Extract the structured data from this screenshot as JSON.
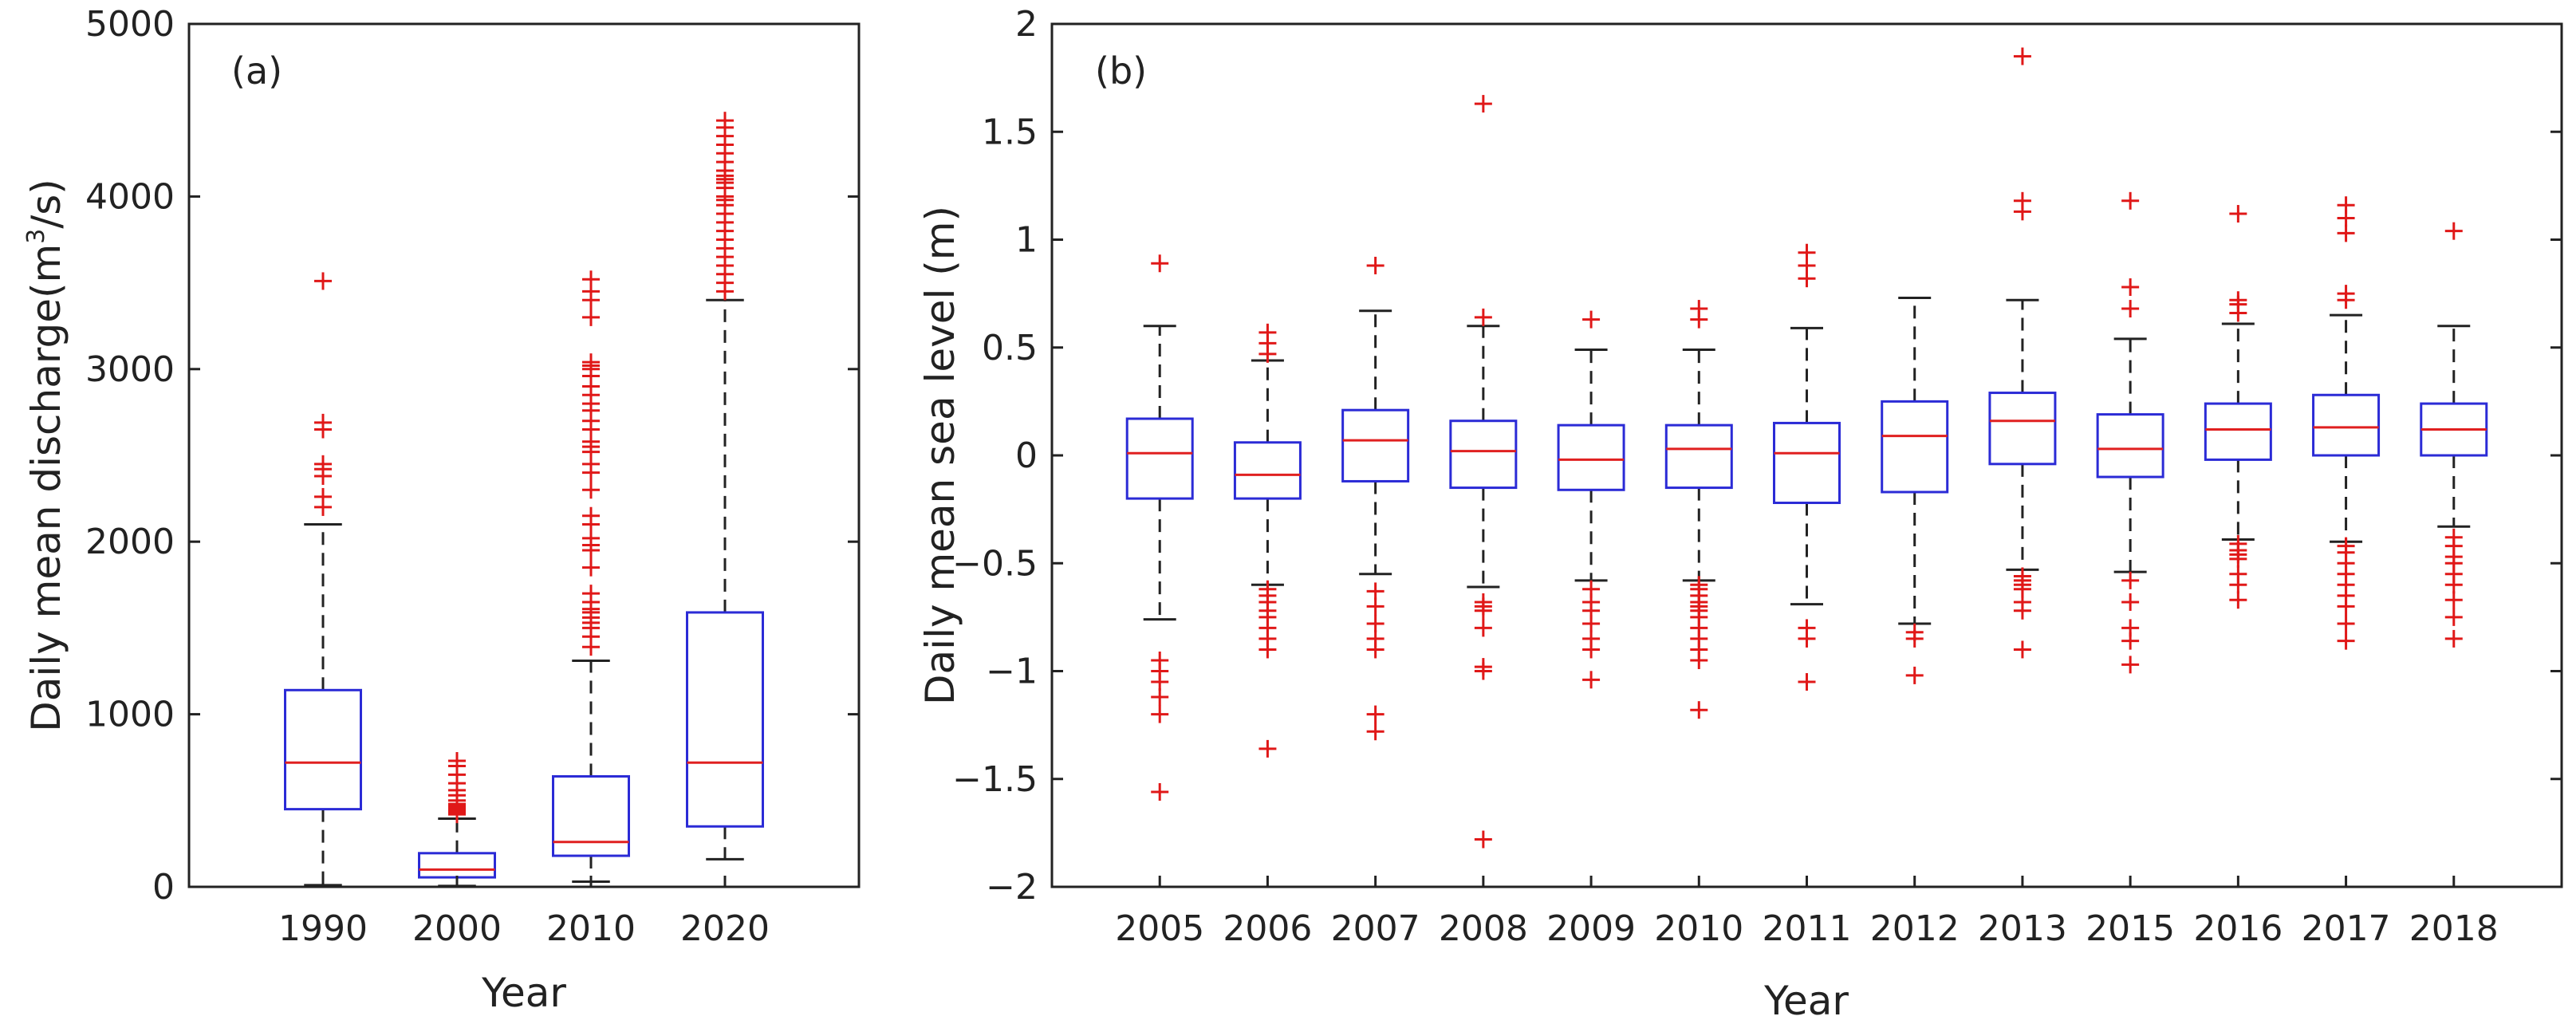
{
  "colors": {
    "box": "#2b2bd6",
    "median": "#e02020",
    "outlier": "#e01818",
    "whisker": "#222222",
    "axis": "#222222"
  },
  "chart_data": [
    {
      "type": "boxplot",
      "panel_label": "(a)",
      "xlabel": "Year",
      "ylabel_main": "Daily mean discharge(m",
      "ylabel_sup": "3",
      "ylabel_tail": "/s)",
      "ylim": [
        0,
        5000
      ],
      "yticks": [
        0,
        1000,
        2000,
        3000,
        4000,
        5000
      ],
      "yticklabels": [
        "0",
        "1000",
        "2000",
        "3000",
        "4000",
        "5000"
      ],
      "categories": [
        "1990",
        "2000",
        "2010",
        "2020"
      ],
      "boxes": [
        {
          "whislo": 10,
          "q1": 450,
          "med": 720,
          "q3": 1140,
          "whishi": 2100,
          "fliers": [
            2200,
            2260,
            2380,
            2420,
            2450,
            2650,
            2690,
            3510
          ]
        },
        {
          "whislo": 5,
          "q1": 55,
          "med": 100,
          "q3": 195,
          "whishi": 395,
          "fliers": [
            420,
            430,
            440,
            450,
            455,
            460,
            470,
            480,
            500,
            530,
            560,
            600,
            650,
            700,
            730
          ]
        },
        {
          "whislo": 30,
          "q1": 180,
          "med": 260,
          "q3": 640,
          "whishi": 1310,
          "fliers": [
            1390,
            1450,
            1500,
            1530,
            1560,
            1590,
            1610,
            1650,
            1700,
            1850,
            1950,
            1980,
            2020,
            2100,
            2150,
            2300,
            2400,
            2450,
            2520,
            2550,
            2580,
            2650,
            2700,
            2760,
            2800,
            2850,
            2900,
            2960,
            3000,
            3020,
            3040,
            3300,
            3400,
            3450,
            3520
          ]
        },
        {
          "whislo": 160,
          "q1": 350,
          "med": 720,
          "q3": 1590,
          "whishi": 3400,
          "fliers": [
            3450,
            3500,
            3550,
            3600,
            3650,
            3700,
            3750,
            3800,
            3850,
            3900,
            3950,
            3980,
            4000,
            4050,
            4080,
            4100,
            4120,
            4150,
            4200,
            4250,
            4300,
            4350,
            4400,
            4440
          ]
        }
      ]
    },
    {
      "type": "boxplot",
      "panel_label": "(b)",
      "xlabel": "Year",
      "ylabel": "Daily mean sea level (m)",
      "ylim": [
        -2,
        2
      ],
      "yticks": [
        -2,
        -1.5,
        -1,
        -0.5,
        0,
        0.5,
        1,
        1.5,
        2
      ],
      "yticklabels": [
        "−2",
        "−1.5",
        "−1",
        "−0.5",
        "0",
        "0.5",
        "1",
        "1.5",
        "2"
      ],
      "categories": [
        "2005",
        "2006",
        "2007",
        "2008",
        "2009",
        "2010",
        "2011",
        "2012",
        "2013",
        "2015",
        "2016",
        "2017",
        "2018"
      ],
      "boxes": [
        {
          "whislo": -0.76,
          "q1": -0.2,
          "med": 0.01,
          "q3": 0.17,
          "whishi": 0.6,
          "fliers": [
            0.89,
            -0.95,
            -1.0,
            -1.05,
            -1.12,
            -1.2,
            -1.56
          ]
        },
        {
          "whislo": -0.6,
          "q1": -0.2,
          "med": -0.09,
          "q3": 0.06,
          "whishi": 0.44,
          "fliers": [
            0.47,
            0.52,
            0.57,
            -0.62,
            -0.65,
            -0.68,
            -0.72,
            -0.75,
            -0.8,
            -0.85,
            -0.9,
            -1.36
          ]
        },
        {
          "whislo": -0.55,
          "q1": -0.12,
          "med": 0.07,
          "q3": 0.21,
          "whishi": 0.67,
          "fliers": [
            0.88,
            -0.63,
            -0.7,
            -0.78,
            -0.85,
            -0.9,
            -1.2,
            -1.28
          ]
        },
        {
          "whislo": -0.61,
          "q1": -0.15,
          "med": 0.02,
          "q3": 0.16,
          "whishi": 0.6,
          "fliers": [
            0.64,
            1.63,
            -0.68,
            -0.7,
            -0.72,
            -0.8,
            -0.98,
            -1.0,
            -1.78
          ]
        },
        {
          "whislo": -0.58,
          "q1": -0.16,
          "med": -0.02,
          "q3": 0.14,
          "whishi": 0.49,
          "fliers": [
            0.63,
            -0.62,
            -0.68,
            -0.72,
            -0.78,
            -0.85,
            -0.9,
            -1.04
          ]
        },
        {
          "whislo": -0.58,
          "q1": -0.15,
          "med": 0.03,
          "q3": 0.14,
          "whishi": 0.49,
          "fliers": [
            0.63,
            0.68,
            -0.6,
            -0.62,
            -0.65,
            -0.68,
            -0.7,
            -0.72,
            -0.75,
            -0.8,
            -0.85,
            -0.9,
            -0.95,
            -1.18
          ]
        },
        {
          "whislo": -0.69,
          "q1": -0.22,
          "med": 0.01,
          "q3": 0.15,
          "whishi": 0.59,
          "fliers": [
            0.82,
            0.88,
            0.94,
            -0.8,
            -0.85,
            -1.05
          ]
        },
        {
          "whislo": -0.78,
          "q1": -0.17,
          "med": 0.09,
          "q3": 0.25,
          "whishi": 0.73,
          "fliers": [
            -0.82,
            -0.85,
            -1.02
          ]
        },
        {
          "whislo": -0.53,
          "q1": -0.04,
          "med": 0.16,
          "q3": 0.29,
          "whishi": 0.72,
          "fliers": [
            1.13,
            1.18,
            1.85,
            -0.56,
            -0.58,
            -0.6,
            -0.62,
            -0.68,
            -0.72,
            -0.9
          ]
        },
        {
          "whislo": -0.54,
          "q1": -0.1,
          "med": 0.03,
          "q3": 0.19,
          "whishi": 0.54,
          "fliers": [
            0.68,
            0.78,
            1.18,
            -0.58,
            -0.68,
            -0.8,
            -0.86,
            -0.97
          ]
        },
        {
          "whislo": -0.39,
          "q1": -0.02,
          "med": 0.12,
          "q3": 0.24,
          "whishi": 0.61,
          "fliers": [
            0.66,
            0.7,
            0.72,
            1.12,
            -0.41,
            -0.44,
            -0.46,
            -0.48,
            -0.55,
            -0.6,
            -0.67
          ]
        },
        {
          "whislo": -0.4,
          "q1": 0.0,
          "med": 0.13,
          "q3": 0.28,
          "whishi": 0.65,
          "fliers": [
            0.72,
            0.75,
            1.03,
            1.1,
            1.16,
            -0.42,
            -0.45,
            -0.5,
            -0.55,
            -0.6,
            -0.65,
            -0.7,
            -0.78,
            -0.86
          ]
        },
        {
          "whislo": -0.33,
          "q1": 0.0,
          "med": 0.12,
          "q3": 0.24,
          "whishi": 0.6,
          "fliers": [
            1.04,
            -0.38,
            -0.42,
            -0.47,
            -0.5,
            -0.55,
            -0.6,
            -0.67,
            -0.75,
            -0.85
          ]
        }
      ]
    }
  ]
}
